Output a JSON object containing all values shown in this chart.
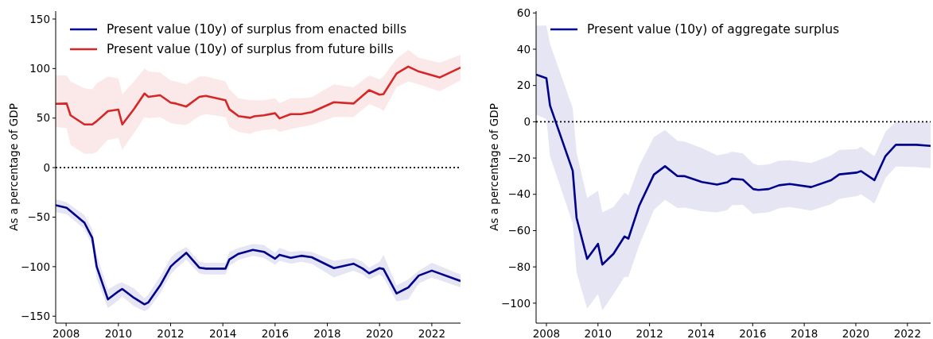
{
  "chart_data": [
    {
      "type": "line",
      "ylabel": "As a percentage of GDP",
      "xlim": [
        2007.6,
        2023.1
      ],
      "ylim": [
        -157,
        158
      ],
      "xticks": [
        2008,
        2010,
        2012,
        2014,
        2016,
        2018,
        2020,
        2022
      ],
      "yticks": [
        -150,
        -100,
        -50,
        0,
        50,
        100,
        150
      ],
      "legend": "upper left",
      "grid": false,
      "ref_lines": [
        {
          "axis": "y",
          "value": 0,
          "color": "#000000",
          "line_style": "dotted"
        }
      ],
      "series": [
        {
          "name": "Present value (10y) of surplus from enacted bills",
          "color": "#00008b",
          "x": [
            2007.6,
            2008.02,
            2008.7,
            2009.0,
            2009.17,
            2009.6,
            2010.0,
            2010.15,
            2010.6,
            2011.0,
            2011.15,
            2011.6,
            2012.0,
            2012.2,
            2012.6,
            2013.1,
            2013.35,
            2014.1,
            2014.25,
            2014.6,
            2015.15,
            2015.57,
            2016.0,
            2016.17,
            2016.6,
            2017.0,
            2017.4,
            2018.25,
            2019.0,
            2019.35,
            2019.6,
            2020.0,
            2020.15,
            2020.65,
            2021.1,
            2021.5,
            2022.0,
            2023.1
          ],
          "values": [
            -38,
            -40.5,
            -55.6,
            -71,
            -100,
            -133,
            -125,
            -122.5,
            -131.5,
            -138,
            -136,
            -119,
            -100,
            -95,
            -86,
            -101,
            -102,
            -102,
            -92.7,
            -87,
            -83,
            -85,
            -92,
            -88,
            -91,
            -89,
            -90.5,
            -101.5,
            -97,
            -101.8,
            -106.7,
            -101.5,
            -102.4,
            -127,
            -121,
            -109,
            -104,
            -114.5
          ],
          "upper": [
            -32,
            -35,
            -48,
            -62,
            -88,
            -123,
            -117,
            -116,
            -122,
            -132,
            -128,
            -110,
            -91,
            -86,
            -80,
            -95,
            -96,
            -96,
            -85,
            -81,
            -77,
            -78,
            -86,
            -81,
            -85,
            -84,
            -85,
            -94,
            -91,
            -95,
            -101,
            -95,
            -88,
            -119,
            -113,
            -104,
            -96,
            -108
          ],
          "lower": [
            -45,
            -47,
            -62,
            -79,
            -112,
            -142,
            -134,
            -130,
            -140,
            -145,
            -143,
            -127,
            -108,
            -102,
            -93,
            -107,
            -108,
            -108,
            -99,
            -93,
            -89,
            -91,
            -98,
            -94,
            -97,
            -95,
            -97,
            -111,
            -104,
            -108,
            -113,
            -108,
            -111,
            -135,
            -133,
            -117,
            -111,
            -121
          ]
        },
        {
          "name": "Present value (10y) of surplus from future bills",
          "color": "#d62728",
          "x": [
            2007.6,
            2008.02,
            2008.17,
            2008.7,
            2009.0,
            2009.17,
            2009.6,
            2010.0,
            2010.15,
            2010.6,
            2011.0,
            2011.15,
            2011.6,
            2012.0,
            2012.2,
            2012.6,
            2013.1,
            2013.35,
            2014.1,
            2014.25,
            2014.6,
            2015.05,
            2015.2,
            2015.57,
            2016.0,
            2016.17,
            2016.6,
            2017.0,
            2017.4,
            2018.25,
            2019.0,
            2019.6,
            2020.0,
            2020.15,
            2020.65,
            2021.1,
            2021.5,
            2022.3,
            2023.1
          ],
          "values": [
            64.4,
            64.7,
            52.8,
            43.6,
            43.6,
            46.9,
            57,
            58.6,
            43.6,
            59.2,
            74.8,
            71.5,
            73,
            65.6,
            64.7,
            61.7,
            71.5,
            72.4,
            68,
            58.9,
            52,
            50.3,
            51.8,
            52.8,
            54.9,
            49.7,
            54,
            54,
            56,
            66,
            64.7,
            78.2,
            73.6,
            74.2,
            95,
            102,
            97,
            91,
            101
          ],
          "upper": [
            93,
            93,
            87,
            80,
            79,
            85,
            92,
            90,
            74,
            87,
            100,
            97,
            96,
            88,
            87,
            84,
            92,
            92,
            87,
            79,
            70,
            68,
            68,
            68,
            70,
            65,
            70,
            70,
            71,
            84,
            81,
            93,
            89,
            92,
            110,
            119,
            111,
            106,
            114
          ],
          "lower": [
            41,
            40,
            23,
            14,
            14,
            16,
            28,
            30,
            18,
            35,
            51,
            50,
            51,
            45,
            44,
            43,
            52,
            54,
            51,
            41,
            36,
            34,
            36,
            38,
            39,
            36,
            39,
            41,
            43,
            51,
            51,
            64,
            60,
            57,
            81,
            87,
            84,
            77,
            88
          ]
        }
      ]
    },
    {
      "type": "line",
      "ylabel": "As a percentage of GDP",
      "xlim": [
        2007.6,
        2022.9
      ],
      "ylim": [
        -111,
        61
      ],
      "xticks": [
        2008,
        2010,
        2012,
        2014,
        2016,
        2018,
        2020,
        2022
      ],
      "yticks": [
        -100,
        -80,
        -60,
        -40,
        -20,
        0,
        20,
        40,
        60
      ],
      "legend": "upper left",
      "grid": false,
      "ref_lines": [
        {
          "axis": "y",
          "value": 0,
          "color": "#000000",
          "line_style": "dotted"
        }
      ],
      "series": [
        {
          "name": "Present value (10y) of aggregate surplus",
          "color": "#00008b",
          "x": [
            2007.6,
            2008.0,
            2008.14,
            2009.02,
            2009.17,
            2009.58,
            2010.0,
            2010.17,
            2010.6,
            2011.03,
            2011.18,
            2011.6,
            2012.17,
            2012.6,
            2013.08,
            2013.37,
            2014.03,
            2014.62,
            2015.02,
            2015.2,
            2015.62,
            2016.02,
            2016.22,
            2016.62,
            2017.02,
            2017.44,
            2018.27,
            2019.04,
            2019.36,
            2020.04,
            2020.2,
            2020.72,
            2021.15,
            2021.55,
            2022.35,
            2022.9
          ],
          "values": [
            26,
            24,
            9,
            -27,
            -53,
            -75.6,
            -67.3,
            -78.7,
            -72.8,
            -63.2,
            -64.4,
            -46.2,
            -29.1,
            -24.5,
            -29.9,
            -30,
            -33.2,
            -34.6,
            -33.3,
            -31.4,
            -31.9,
            -37.1,
            -37.6,
            -37.1,
            -35,
            -34.3,
            -36,
            -32.2,
            -29,
            -28,
            -27.2,
            -32.2,
            -18.9,
            -12.7,
            -12.7,
            -13.3
          ],
          "upper": [
            53,
            53,
            43,
            7.5,
            -17,
            -42,
            -38,
            -50,
            -47,
            -39,
            -40.5,
            -24,
            -8.5,
            -4.5,
            -10.5,
            -11,
            -14.5,
            -18.5,
            -17.5,
            -16.5,
            -17.5,
            -23,
            -24,
            -23.5,
            -21.5,
            -21.3,
            -22.7,
            -18.5,
            -15.5,
            -15,
            -13.7,
            -19,
            -5.5,
            0,
            0,
            0
          ],
          "lower": [
            4,
            1.5,
            -19,
            -56,
            -83,
            -103,
            -95,
            -104,
            -95,
            -85.5,
            -85.5,
            -68,
            -48.5,
            -43,
            -47.5,
            -47.3,
            -49.3,
            -50,
            -48.6,
            -46,
            -45.8,
            -50.8,
            -50.4,
            -50,
            -47.6,
            -47,
            -49,
            -45.5,
            -42.5,
            -41,
            -40,
            -45,
            -31,
            -24.7,
            -25,
            -25.5
          ]
        }
      ]
    }
  ]
}
